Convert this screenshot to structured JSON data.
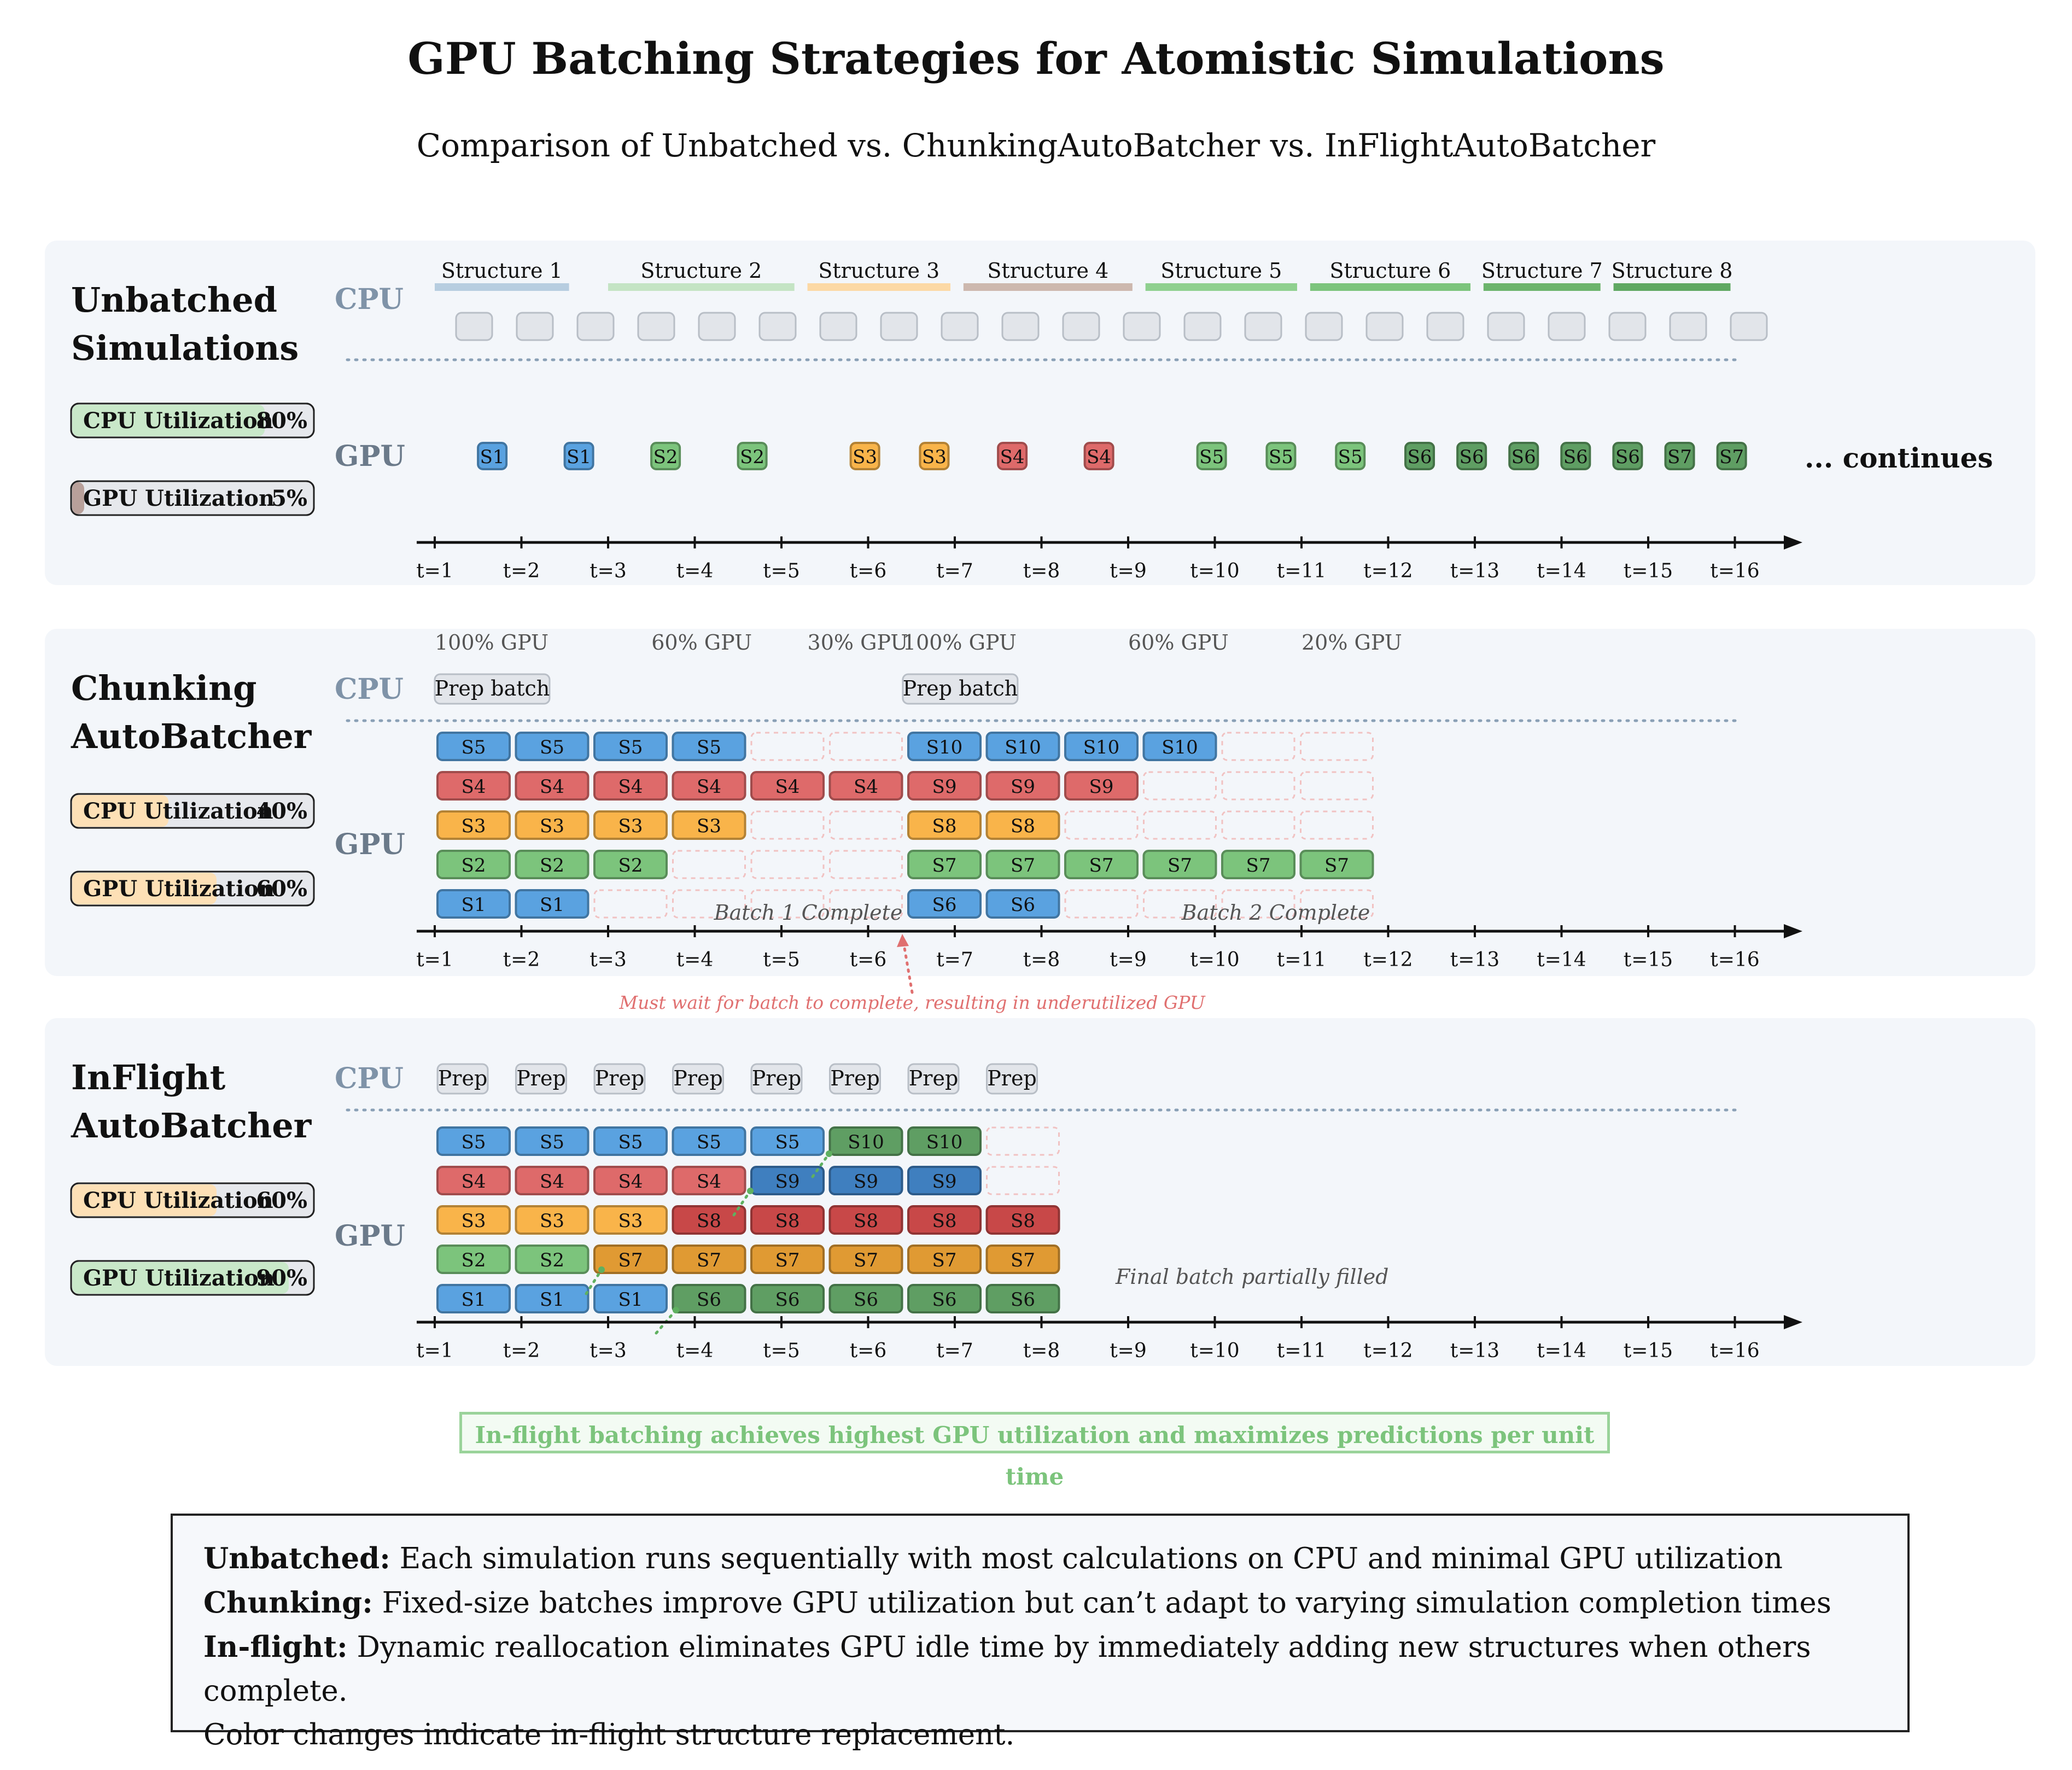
{
  "title": "GPU Batching Strategies for Atomistic Simulations",
  "subtitle": "Comparison of Unbatched vs. ChunkingAutoBatcher vs. InFlightAutoBatcher",
  "lane_labels": {
    "cpu": "CPU",
    "gpu": "GPU"
  },
  "time_ticks": [
    "t=1",
    "t=2",
    "t=3",
    "t=4",
    "t=5",
    "t=6",
    "t=7",
    "t=8",
    "t=9",
    "t=10",
    "t=11",
    "t=12",
    "t=13",
    "t=14",
    "t=15",
    "t=16"
  ],
  "colors": {
    "blue": "#5aa2e0",
    "green": "#7cc47c",
    "orange": "#f9b44a",
    "red": "#de6a6a",
    "dark_green": "#5f9e63",
    "dark_blue": "#3f7fbf",
    "dark_red": "#c84848",
    "dark_orange": "#e09a33",
    "panel_bg": "#f3f6fa",
    "cpu_box": "#e2e5ea"
  },
  "panels": [
    {
      "id": "unbatched",
      "title_lines": [
        "Unbatched",
        "Simulations"
      ],
      "cpu_utilization": {
        "label": "CPU Utilization",
        "value_text": "80%",
        "value": 0.8,
        "color": "#c9e8c9"
      },
      "gpu_utilization": {
        "label": "GPU Utilization",
        "value_text": "5%",
        "value": 0.05,
        "color": "#b8a09a"
      },
      "structures": [
        {
          "label": "Structure 1",
          "color": "#b7cde0"
        },
        {
          "label": "Structure 2",
          "color": "#c4e4c4"
        },
        {
          "label": "Structure 3",
          "color": "#fcd9a5"
        },
        {
          "label": "Structure 4",
          "color": "#cdb8ae"
        },
        {
          "label": "Structure 5",
          "color": "#8fd08f"
        },
        {
          "label": "Structure 6",
          "color": "#7cc47c"
        },
        {
          "label": "Structure 7",
          "color": "#6cb46c"
        },
        {
          "label": "Structure 8",
          "color": "#5fa862"
        }
      ],
      "gpu_tasks": [
        {
          "label": "S1",
          "t": 1.6,
          "color": "blue"
        },
        {
          "label": "S1",
          "t": 2.6,
          "color": "blue"
        },
        {
          "label": "S2",
          "t": 3.6,
          "color": "green"
        },
        {
          "label": "S2",
          "t": 4.6,
          "color": "green"
        },
        {
          "label": "S3",
          "t": 5.9,
          "color": "orange"
        },
        {
          "label": "S3",
          "t": 6.7,
          "color": "orange"
        },
        {
          "label": "S4",
          "t": 7.6,
          "color": "red"
        },
        {
          "label": "S4",
          "t": 8.6,
          "color": "red"
        },
        {
          "label": "S5",
          "t": 9.9,
          "color": "green"
        },
        {
          "label": "S5",
          "t": 10.7,
          "color": "green"
        },
        {
          "label": "S5",
          "t": 11.5,
          "color": "green"
        },
        {
          "label": "S6",
          "t": 12.3,
          "color": "dark_green"
        },
        {
          "label": "S6",
          "t": 12.9,
          "color": "dark_green"
        },
        {
          "label": "S6",
          "t": 13.5,
          "color": "dark_green"
        },
        {
          "label": "S6",
          "t": 14.1,
          "color": "dark_green"
        },
        {
          "label": "S6",
          "t": 14.7,
          "color": "dark_green"
        },
        {
          "label": "S7",
          "t": 15.3,
          "color": "dark_green"
        },
        {
          "label": "S7",
          "t": 15.9,
          "color": "dark_green"
        }
      ],
      "continues_text": "... continues"
    },
    {
      "id": "chunking",
      "title_lines": [
        "Chunking",
        "AutoBatcher"
      ],
      "cpu_utilization": {
        "label": "CPU Utilization",
        "value_text": "40%",
        "value": 0.4,
        "color": "#fde0b6"
      },
      "gpu_utilization": {
        "label": "GPU Utilization",
        "value_text": "60%",
        "value": 0.6,
        "color": "#fde0b6"
      },
      "gpu_pct_labels": [
        {
          "text": "100% GPU",
          "t": 1
        },
        {
          "text": "60% GPU",
          "t": 3.5
        },
        {
          "text": "30% GPU",
          "t": 5.3
        },
        {
          "text": "100% GPU",
          "t": 6.4
        },
        {
          "text": "60% GPU",
          "t": 9
        },
        {
          "text": "20% GPU",
          "t": 11
        }
      ],
      "prep_batches": [
        {
          "text": "Prep batch",
          "t": 1
        },
        {
          "text": "Prep batch",
          "t": 6.4
        }
      ],
      "rows": [
        [
          {
            "label": "S5",
            "color": "blue"
          },
          {
            "label": "S5",
            "color": "blue"
          },
          {
            "label": "S5",
            "color": "blue"
          },
          {
            "label": "S5",
            "color": "blue"
          },
          null,
          null,
          {
            "label": "S10",
            "color": "blue"
          },
          {
            "label": "S10",
            "color": "blue"
          },
          {
            "label": "S10",
            "color": "blue"
          },
          {
            "label": "S10",
            "color": "blue"
          },
          null,
          null
        ],
        [
          {
            "label": "S4",
            "color": "red"
          },
          {
            "label": "S4",
            "color": "red"
          },
          {
            "label": "S4",
            "color": "red"
          },
          {
            "label": "S4",
            "color": "red"
          },
          {
            "label": "S4",
            "color": "red"
          },
          {
            "label": "S4",
            "color": "red"
          },
          {
            "label": "S9",
            "color": "red"
          },
          {
            "label": "S9",
            "color": "red"
          },
          {
            "label": "S9",
            "color": "red"
          },
          null,
          null,
          null
        ],
        [
          {
            "label": "S3",
            "color": "orange"
          },
          {
            "label": "S3",
            "color": "orange"
          },
          {
            "label": "S3",
            "color": "orange"
          },
          {
            "label": "S3",
            "color": "orange"
          },
          null,
          null,
          {
            "label": "S8",
            "color": "orange"
          },
          {
            "label": "S8",
            "color": "orange"
          },
          null,
          null,
          null,
          null
        ],
        [
          {
            "label": "S2",
            "color": "green"
          },
          {
            "label": "S2",
            "color": "green"
          },
          {
            "label": "S2",
            "color": "green"
          },
          null,
          null,
          null,
          {
            "label": "S7",
            "color": "green"
          },
          {
            "label": "S7",
            "color": "green"
          },
          {
            "label": "S7",
            "color": "green"
          },
          {
            "label": "S7",
            "color": "green"
          },
          {
            "label": "S7",
            "color": "green"
          },
          {
            "label": "S7",
            "color": "green"
          }
        ],
        [
          {
            "label": "S1",
            "color": "blue"
          },
          {
            "label": "S1",
            "color": "blue"
          },
          null,
          null,
          null,
          null,
          {
            "label": "S6",
            "color": "blue"
          },
          {
            "label": "S6",
            "color": "blue"
          },
          null,
          null,
          null,
          null
        ]
      ],
      "batch_labels": [
        "Batch 1 Complete",
        "Batch 2 Complete"
      ],
      "wait_note": "Must wait for batch to complete, resulting in underutilized GPU"
    },
    {
      "id": "inflight",
      "title_lines": [
        "InFlight",
        "AutoBatcher"
      ],
      "cpu_utilization": {
        "label": "CPU Utilization",
        "value_text": "60%",
        "value": 0.6,
        "color": "#fde0b6"
      },
      "gpu_utilization": {
        "label": "GPU Utilization",
        "value_text": "90%",
        "value": 0.9,
        "color": "#c9e8c9"
      },
      "prep_label": "Prep",
      "prep_count": 8,
      "rows": [
        [
          {
            "label": "S5",
            "color": "blue"
          },
          {
            "label": "S5",
            "color": "blue"
          },
          {
            "label": "S5",
            "color": "blue"
          },
          {
            "label": "S5",
            "color": "blue"
          },
          {
            "label": "S5",
            "color": "blue"
          },
          {
            "label": "S10",
            "color": "dark_green"
          },
          {
            "label": "S10",
            "color": "dark_green"
          },
          null
        ],
        [
          {
            "label": "S4",
            "color": "red"
          },
          {
            "label": "S4",
            "color": "red"
          },
          {
            "label": "S4",
            "color": "red"
          },
          {
            "label": "S4",
            "color": "red"
          },
          {
            "label": "S9",
            "color": "dark_blue"
          },
          {
            "label": "S9",
            "color": "dark_blue"
          },
          {
            "label": "S9",
            "color": "dark_blue"
          },
          null
        ],
        [
          {
            "label": "S3",
            "color": "orange"
          },
          {
            "label": "S3",
            "color": "orange"
          },
          {
            "label": "S3",
            "color": "orange"
          },
          {
            "label": "S8",
            "color": "dark_red"
          },
          {
            "label": "S8",
            "color": "dark_red"
          },
          {
            "label": "S8",
            "color": "dark_red"
          },
          {
            "label": "S8",
            "color": "dark_red"
          },
          {
            "label": "S8",
            "color": "dark_red"
          }
        ],
        [
          {
            "label": "S2",
            "color": "green"
          },
          {
            "label": "S2",
            "color": "green"
          },
          {
            "label": "S7",
            "color": "dark_orange"
          },
          {
            "label": "S7",
            "color": "dark_orange"
          },
          {
            "label": "S7",
            "color": "dark_orange"
          },
          {
            "label": "S7",
            "color": "dark_orange"
          },
          {
            "label": "S7",
            "color": "dark_orange"
          },
          {
            "label": "S7",
            "color": "dark_orange"
          }
        ],
        [
          {
            "label": "S1",
            "color": "blue"
          },
          {
            "label": "S1",
            "color": "blue"
          },
          {
            "label": "S1",
            "color": "blue"
          },
          {
            "label": "S6",
            "color": "dark_green"
          },
          {
            "label": "S6",
            "color": "dark_green"
          },
          {
            "label": "S6",
            "color": "dark_green"
          },
          {
            "label": "S6",
            "color": "dark_green"
          },
          {
            "label": "S6",
            "color": "dark_green"
          }
        ]
      ],
      "final_note": "Final batch partially filled"
    }
  ],
  "summary": "In-flight batching achieves highest GPU utilization and maximizes predictions per unit time",
  "legend": [
    {
      "term": "Unbatched:",
      "text": "Each simulation runs sequentially with most calculations on CPU and minimal GPU utilization"
    },
    {
      "term": "Chunking:",
      "text": "Fixed-size batches improve GPU utilization but can’t adapt to varying simulation completion times"
    },
    {
      "term": "In-flight:",
      "text": "Dynamic reallocation eliminates GPU idle time by immediately adding new structures when others complete."
    },
    {
      "term": "",
      "text": "Color changes indicate in-flight structure replacement."
    }
  ]
}
